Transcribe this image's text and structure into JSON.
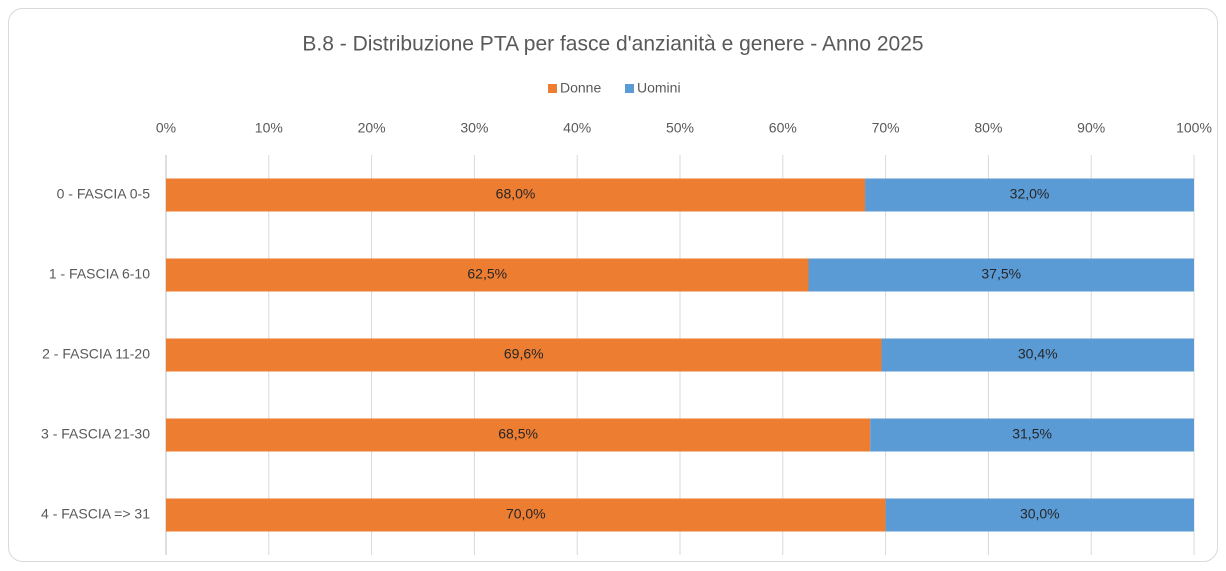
{
  "chart_data": {
    "type": "stacked_barh",
    "title": "B.8 - Distribuzione PTA per fasce d'anzianità e genere - Anno 2025",
    "categories": [
      "0 - FASCIA 0-5",
      "1 - FASCIA 6-10",
      "2 - FASCIA 11-20",
      "3 - FASCIA 21-30",
      "4 - FASCIA => 31"
    ],
    "series": [
      {
        "name": "Donne",
        "color": "#ed7d31",
        "values": [
          68.0,
          62.5,
          69.6,
          68.5,
          70.0
        ],
        "value_labels": [
          "68,0%",
          "62,5%",
          "69,6%",
          "68,5%",
          "70,0%"
        ]
      },
      {
        "name": "Uomini",
        "color": "#5b9bd5",
        "values": [
          32.0,
          37.5,
          30.4,
          31.5,
          30.0
        ],
        "value_labels": [
          "32,0%",
          "37,5%",
          "30,4%",
          "31,5%",
          "30,0%"
        ]
      }
    ],
    "xlim": [
      0,
      100
    ],
    "xticks": [
      {
        "value": 0,
        "label": "0%"
      },
      {
        "value": 10,
        "label": "10%"
      },
      {
        "value": 20,
        "label": "20%"
      },
      {
        "value": 30,
        "label": "30%"
      },
      {
        "value": 40,
        "label": "40%"
      },
      {
        "value": 50,
        "label": "50%"
      },
      {
        "value": 60,
        "label": "60%"
      },
      {
        "value": 70,
        "label": "70%"
      },
      {
        "value": 80,
        "label": "80%"
      },
      {
        "value": 90,
        "label": "90%"
      },
      {
        "value": 100,
        "label": "100%"
      }
    ],
    "grid": true,
    "legend": "top"
  }
}
